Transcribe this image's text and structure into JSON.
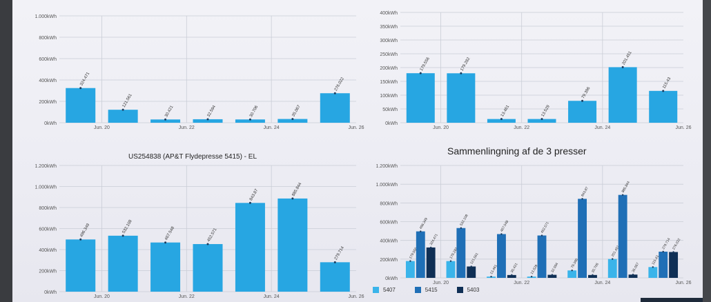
{
  "colors": {
    "bar_primary": "#27a6e2",
    "s5407": "#3ab4ea",
    "s5415": "#1f6fb6",
    "s5403": "#0f2f55",
    "grid": "#c9cdd6",
    "axis_text": "#555555"
  },
  "charts": {
    "top_left": {
      "title": "",
      "chart_data": {
        "type": "bar",
        "y_ticks": [
          "0kWh",
          "200kWh",
          "400kWh",
          "600kWh",
          "800kWh",
          "1.000kWh"
        ],
        "ylim": [
          0,
          1000
        ],
        "x_ticks": [
          "Jun. 20",
          "Jun. 22",
          "Jun. 24",
          "Jun. 26"
        ],
        "values": [
          324.471,
          121.561,
          30.421,
          32.594,
          30.706,
          35.067,
          276.022
        ],
        "labels": [
          "324.471",
          "121.561",
          "30.421",
          "32.594",
          "30.706",
          "35.067",
          "276.022"
        ]
      }
    },
    "top_right": {
      "title": "",
      "chart_data": {
        "type": "bar",
        "y_ticks": [
          "0kWh",
          "50kWh",
          "100kWh",
          "150kWh",
          "200kWh",
          "250kWh",
          "300kWh",
          "350kWh",
          "400kWh"
        ],
        "ylim": [
          0,
          400
        ],
        "x_ticks": [
          "Jun. 20",
          "Jun. 22",
          "Jun. 24",
          "Jun. 26"
        ],
        "values": [
          179.556,
          179.282,
          13.461,
          13.529,
          79.396,
          201.451,
          115.43
        ],
        "labels": [
          "179.556",
          "179.282",
          "13.461",
          "13.529",
          "79.396",
          "201.451",
          "115.43"
        ]
      }
    },
    "bottom_left": {
      "title": "US254838 (AP&T Flydepresse 5415) - EL",
      "chart_data": {
        "type": "bar",
        "title": "US254838 (AP&T Flydepresse 5415) - EL",
        "y_ticks": [
          "0kWh",
          "200kWh",
          "400kWh",
          "600kWh",
          "800kWh",
          "1.000kWh",
          "1.200kWh"
        ],
        "ylim": [
          0,
          1200
        ],
        "x_ticks": [
          "Jun. 20",
          "Jun. 22",
          "Jun. 24",
          "Jun. 26"
        ],
        "values": [
          496.349,
          532.108,
          467.548,
          452.571,
          843.87,
          885.844,
          279.714
        ],
        "labels": [
          "496.349",
          "532.108",
          "467.548",
          "452.571",
          "843.87",
          "885.844",
          "279.714"
        ]
      }
    },
    "bottom_right": {
      "title": "Sammenlingning af de 3 presser",
      "chart_data": {
        "type": "bar",
        "title": "Sammenlingning af de 3 presser",
        "y_ticks": [
          "0kWh",
          "200kWh",
          "400kWh",
          "600kWh",
          "800kWh",
          "1.000kWh",
          "1.200kWh"
        ],
        "ylim": [
          0,
          1200
        ],
        "x_ticks": [
          "Jun. 20",
          "Jun. 22",
          "Jun. 24",
          "Jun. 26"
        ],
        "series": [
          {
            "name": "5407",
            "values": [
              179.556,
              179.282,
              13.461,
              13.529,
              79.396,
              201.451,
              115.43
            ],
            "labels": [
              "179.556",
              "179.282",
              "13.461",
              "13.529",
              "79.396",
              "201.451",
              "115.43"
            ]
          },
          {
            "name": "5415",
            "values": [
              496.349,
              532.108,
              467.548,
              452.571,
              843.87,
              885.844,
              279.714
            ],
            "labels": [
              "496.349",
              "532.108",
              "467.548",
              "452.571",
              "843.87",
              "885.844",
              "279.714"
            ]
          },
          {
            "name": "5403",
            "values": [
              324.471,
              121.561,
              30.421,
              32.594,
              30.706,
              35.067,
              276.022
            ],
            "labels": [
              "324.471",
              "121.561",
              "30.421",
              "32.594",
              "30.706",
              "35.067",
              "276.022"
            ]
          }
        ],
        "legend_placement": "bottom-left"
      }
    }
  }
}
